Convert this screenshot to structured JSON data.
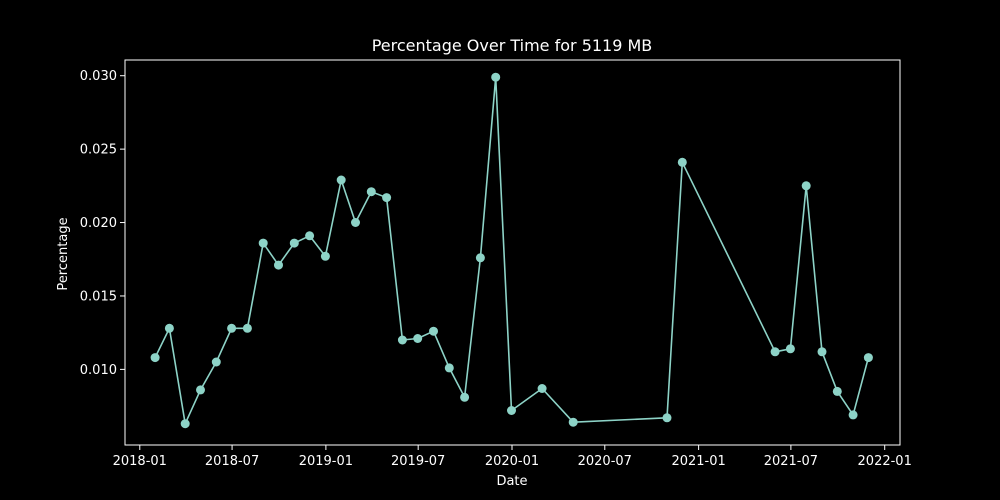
{
  "chart_data": {
    "type": "line",
    "title": "Percentage Over Time for 5119 MB",
    "xlabel": "Date",
    "ylabel": "Percentage",
    "x_ticks": [
      "2018-01",
      "2018-07",
      "2019-01",
      "2019-07",
      "2020-01",
      "2020-07",
      "2021-01",
      "2021-07",
      "2022-01"
    ],
    "y_ticks": [
      "0.010",
      "0.015",
      "0.020",
      "0.025",
      "0.030"
    ],
    "xlim": [
      "2017-12-03",
      "2022-01-31"
    ],
    "ylim": [
      0.00485,
      0.03107
    ],
    "grid": false,
    "colors": {
      "background": "#000000",
      "line": "#8dd3c7",
      "text": "#ffffff"
    },
    "series": [
      {
        "x": [
          "2018-01-31",
          "2018-02-28",
          "2018-03-31",
          "2018-04-30",
          "2018-05-31",
          "2018-06-30",
          "2018-07-31",
          "2018-08-31",
          "2018-09-30",
          "2018-10-31",
          "2018-11-30",
          "2018-12-31",
          "2019-01-31",
          "2019-02-28",
          "2019-03-31",
          "2019-04-30",
          "2019-05-31",
          "2019-06-30",
          "2019-07-31",
          "2019-08-31",
          "2019-09-30",
          "2019-10-31",
          "2019-11-30",
          "2019-12-31",
          "2020-02-29",
          "2020-04-30",
          "2020-10-31",
          "2020-11-30",
          "2021-05-31",
          "2021-06-30",
          "2021-07-31",
          "2021-08-31",
          "2021-09-30",
          "2021-10-31",
          "2021-11-30"
        ],
        "y": [
          0.0108,
          0.0128,
          0.0063,
          0.0086,
          0.0105,
          0.0128,
          0.0128,
          0.0186,
          0.0171,
          0.0186,
          0.0191,
          0.0177,
          0.0229,
          0.02,
          0.0221,
          0.0217,
          0.012,
          0.0121,
          0.0126,
          0.0101,
          0.0081,
          0.0176,
          0.0299,
          0.0072,
          0.0087,
          0.0064,
          0.0067,
          0.0241,
          0.0112,
          0.0114,
          0.0225,
          0.0112,
          0.0085,
          0.0069,
          0.0108
        ]
      }
    ]
  }
}
